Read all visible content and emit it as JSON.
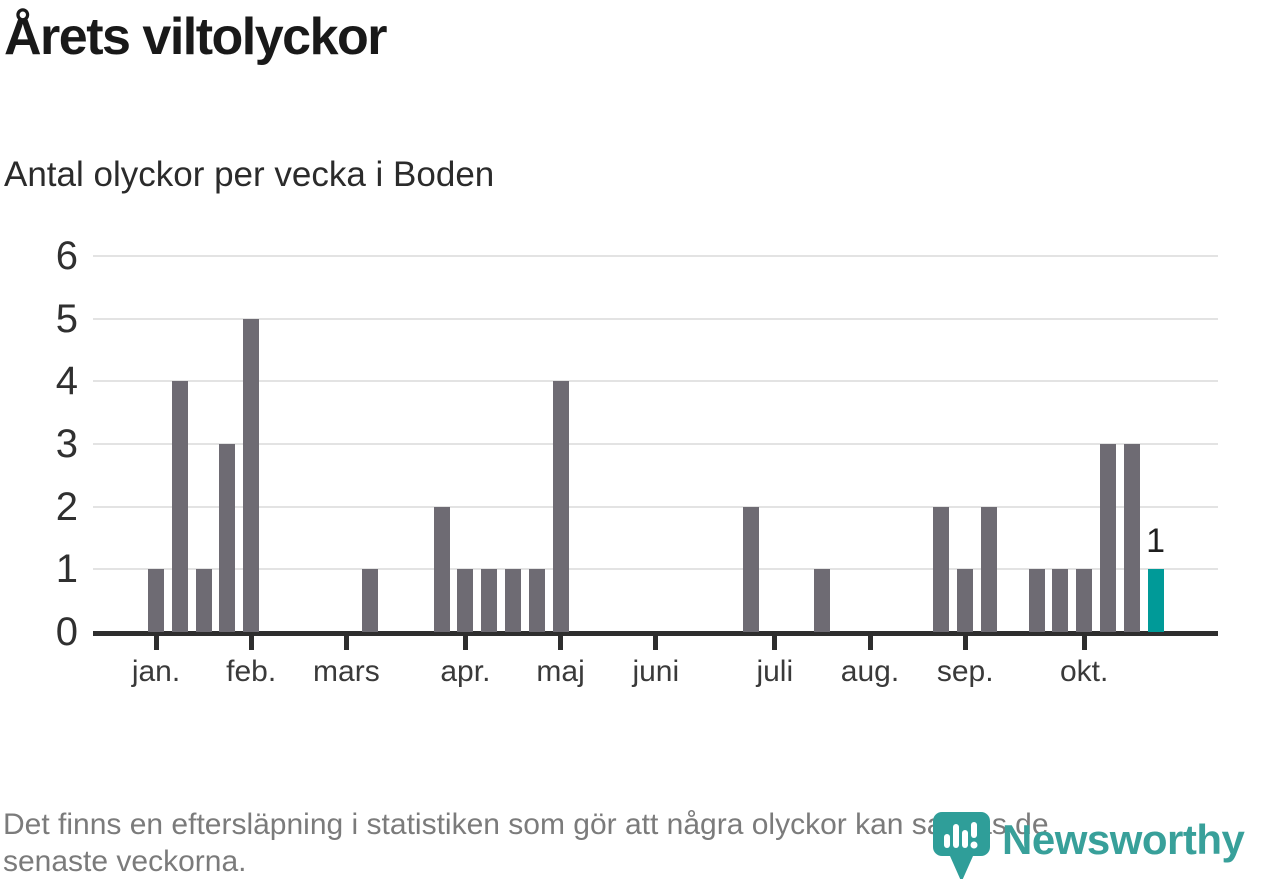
{
  "title": "Årets viltolyckor",
  "subtitle": "Antal olyckor per vecka i Boden",
  "footer": {
    "lines": [
      "Det finns en eftersläpning i statistiken som gör att några olyckor kan saknas de",
      "senaste veckorna."
    ]
  },
  "logo": {
    "wordmark": "Newsworthy",
    "icon": "newsworthy-pin-icon"
  },
  "colors": {
    "bar": "#6e6b73",
    "highlight": "#009a98",
    "grid": "#e3e3e3",
    "axis": "#2e2e2e",
    "title": "#191919",
    "subtitle": "#2b2b2b",
    "axis_labels": "#3a3a3a",
    "footer_text": "#7b7b7b",
    "logo": "#38a09a"
  },
  "chart_data": {
    "type": "bar",
    "title": "Årets viltolyckor",
    "subtitle": "Antal olyckor per vecka i Boden",
    "xlabel": "",
    "ylabel": "",
    "x_unit": "week of year",
    "first_week": 1,
    "values_by_week": [
      1,
      4,
      1,
      3,
      5,
      0,
      0,
      0,
      0,
      1,
      0,
      0,
      2,
      1,
      1,
      1,
      1,
      4,
      0,
      0,
      0,
      0,
      0,
      0,
      0,
      2,
      0,
      0,
      1,
      0,
      0,
      0,
      0,
      2,
      1,
      2,
      0,
      1,
      1,
      1,
      3,
      3,
      1
    ],
    "highlight_last_bar": true,
    "last_bar_label": "1",
    "ylim": [
      0,
      6
    ],
    "y_ticks": [
      0,
      1,
      2,
      3,
      4,
      5,
      6
    ],
    "x_ticks": [
      {
        "label": "jan.",
        "week": 1
      },
      {
        "label": "feb.",
        "week": 5
      },
      {
        "label": "mars",
        "week": 9
      },
      {
        "label": "apr.",
        "week": 14
      },
      {
        "label": "maj",
        "week": 18
      },
      {
        "label": "juni",
        "week": 22
      },
      {
        "label": "juli",
        "week": 27
      },
      {
        "label": "aug.",
        "week": 31
      },
      {
        "label": "sep.",
        "week": 35
      },
      {
        "label": "okt.",
        "week": 40
      }
    ],
    "grid": "horizontal",
    "legend": "none"
  }
}
